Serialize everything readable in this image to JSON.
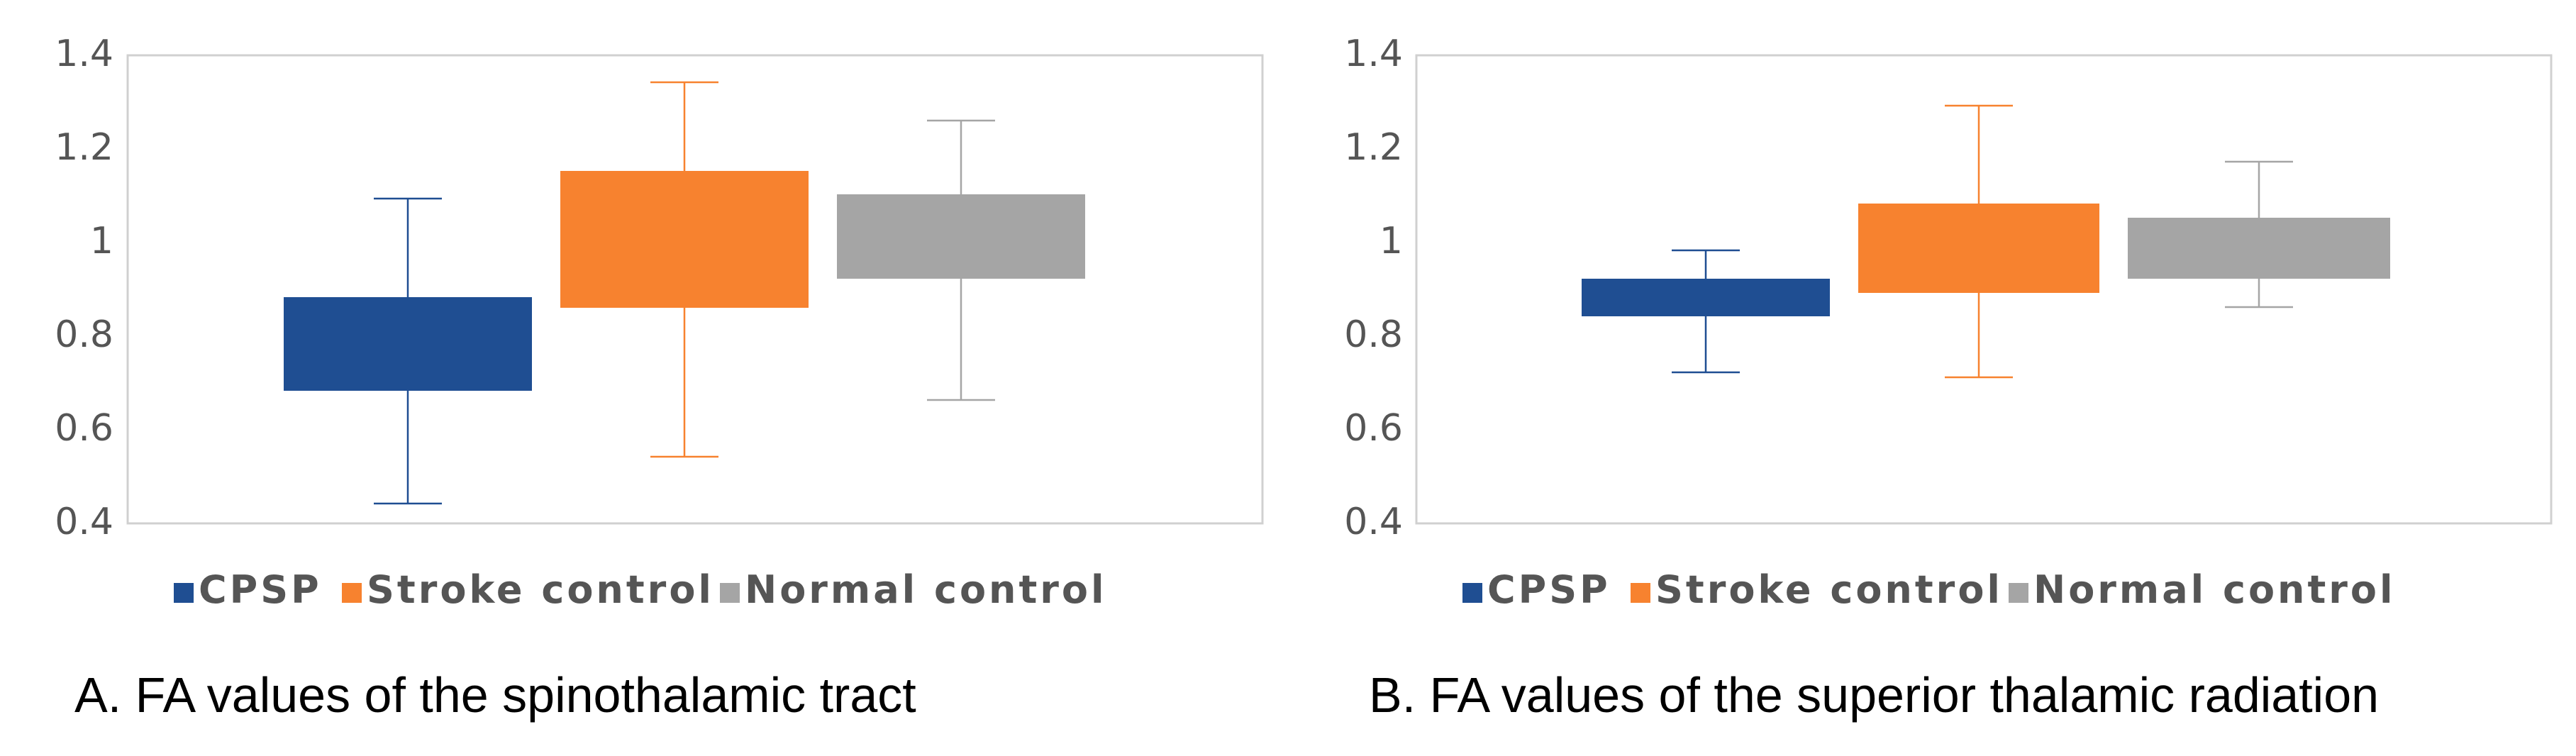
{
  "chart_data": [
    {
      "id": "A",
      "type": "box",
      "caption": "A. FA values of the spinothalamic tract",
      "ylim": [
        0.4,
        1.4
      ],
      "yticks": [
        {
          "value": 1.4,
          "label": "1.4"
        },
        {
          "value": 1.2,
          "label": "1.2"
        },
        {
          "value": 1.0,
          "label": "1"
        },
        {
          "value": 0.8,
          "label": "0.8"
        },
        {
          "value": 0.6,
          "label": "0.6"
        },
        {
          "value": 0.4,
          "label": "0.4"
        }
      ],
      "grid": false,
      "legend_position": "bottom",
      "series": [
        {
          "name": "CPSP",
          "color": "#1f4e92",
          "min": 0.43,
          "q1": 0.67,
          "q3": 0.87,
          "max": 1.08
        },
        {
          "name": "Stroke control",
          "color": "#f7822f",
          "min": 0.53,
          "q1": 0.85,
          "q3": 1.14,
          "max": 1.33
        },
        {
          "name": "Normal control",
          "color": "#a5a5a5",
          "min": 0.65,
          "q1": 0.91,
          "q3": 1.09,
          "max": 1.25
        }
      ]
    },
    {
      "id": "B",
      "type": "box",
      "caption": "B. FA values of the superior thalamic radiation",
      "ylim": [
        0.4,
        1.4
      ],
      "yticks": [
        {
          "value": 1.4,
          "label": "1.4"
        },
        {
          "value": 1.2,
          "label": "1.2"
        },
        {
          "value": 1.0,
          "label": "1"
        },
        {
          "value": 0.8,
          "label": "0.8"
        },
        {
          "value": 0.6,
          "label": "0.6"
        },
        {
          "value": 0.4,
          "label": "0.4"
        }
      ],
      "grid": false,
      "legend_position": "bottom",
      "series": [
        {
          "name": "CPSP",
          "color": "#1f4e92",
          "min": 0.71,
          "q1": 0.83,
          "q3": 0.91,
          "max": 0.98
        },
        {
          "name": "Stroke control",
          "color": "#f7822f",
          "min": 0.7,
          "q1": 0.88,
          "q3": 1.07,
          "max": 1.28
        },
        {
          "name": "Normal control",
          "color": "#a5a5a5",
          "min": 0.85,
          "q1": 0.91,
          "q3": 1.04,
          "max": 1.16
        }
      ]
    }
  ]
}
